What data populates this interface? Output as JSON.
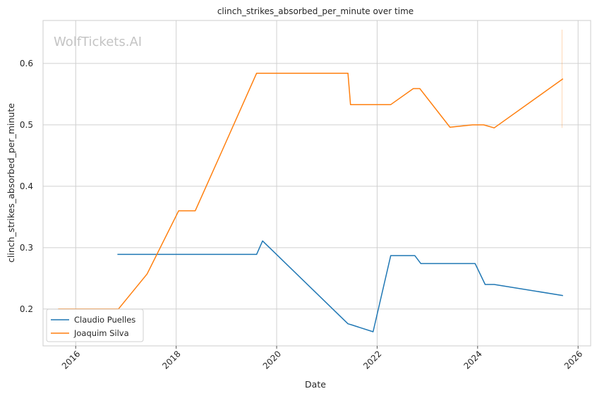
{
  "chart_data": {
    "type": "line",
    "title": "clinch_strikes_absorbed_per_minute over time",
    "xlabel": "Date",
    "ylabel": "clinch_strikes_absorbed_per_minute",
    "watermark": "WolfTickets.AI",
    "xlim": [
      2015.35,
      2026.25
    ],
    "ylim": [
      0.14,
      0.67
    ],
    "x_ticks": [
      2016,
      2018,
      2020,
      2022,
      2024,
      2026
    ],
    "x_tick_labels": [
      "2016",
      "2018",
      "2020",
      "2022",
      "2024",
      "2026"
    ],
    "y_ticks": [
      0.2,
      0.3,
      0.4,
      0.5,
      0.6
    ],
    "y_tick_labels": [
      "0.2",
      "0.3",
      "0.4",
      "0.5",
      "0.6"
    ],
    "grid": true,
    "legend_position": "lower-left",
    "series": [
      {
        "name": "Claudio Puelles",
        "color": "#1f77b4",
        "points": [
          [
            2016.83,
            0.289
          ],
          [
            2019.6,
            0.289
          ],
          [
            2019.72,
            0.311
          ],
          [
            2021.42,
            0.176
          ],
          [
            2021.5,
            0.174
          ],
          [
            2021.92,
            0.163
          ],
          [
            2022.27,
            0.287
          ],
          [
            2022.75,
            0.287
          ],
          [
            2022.87,
            0.274
          ],
          [
            2023.95,
            0.274
          ],
          [
            2024.15,
            0.24
          ],
          [
            2024.33,
            0.24
          ],
          [
            2025.7,
            0.222
          ]
        ]
      },
      {
        "name": "Joaquim Silva",
        "color": "#ff7f0e",
        "points": [
          [
            2015.65,
            0.2
          ],
          [
            2016.85,
            0.2
          ],
          [
            2017.42,
            0.257
          ],
          [
            2018.05,
            0.36
          ],
          [
            2018.38,
            0.36
          ],
          [
            2018.92,
            0.459
          ],
          [
            2019.6,
            0.584
          ],
          [
            2021.42,
            0.584
          ],
          [
            2021.47,
            0.533
          ],
          [
            2022.27,
            0.533
          ],
          [
            2022.72,
            0.559
          ],
          [
            2022.85,
            0.559
          ],
          [
            2023.45,
            0.496
          ],
          [
            2023.9,
            0.5
          ],
          [
            2024.12,
            0.5
          ],
          [
            2024.33,
            0.495
          ],
          [
            2025.7,
            0.575
          ]
        ]
      }
    ],
    "error_bar": {
      "x": 2025.68,
      "y_range": [
        0.495,
        0.655
      ],
      "color": "#ff7f0e"
    }
  }
}
